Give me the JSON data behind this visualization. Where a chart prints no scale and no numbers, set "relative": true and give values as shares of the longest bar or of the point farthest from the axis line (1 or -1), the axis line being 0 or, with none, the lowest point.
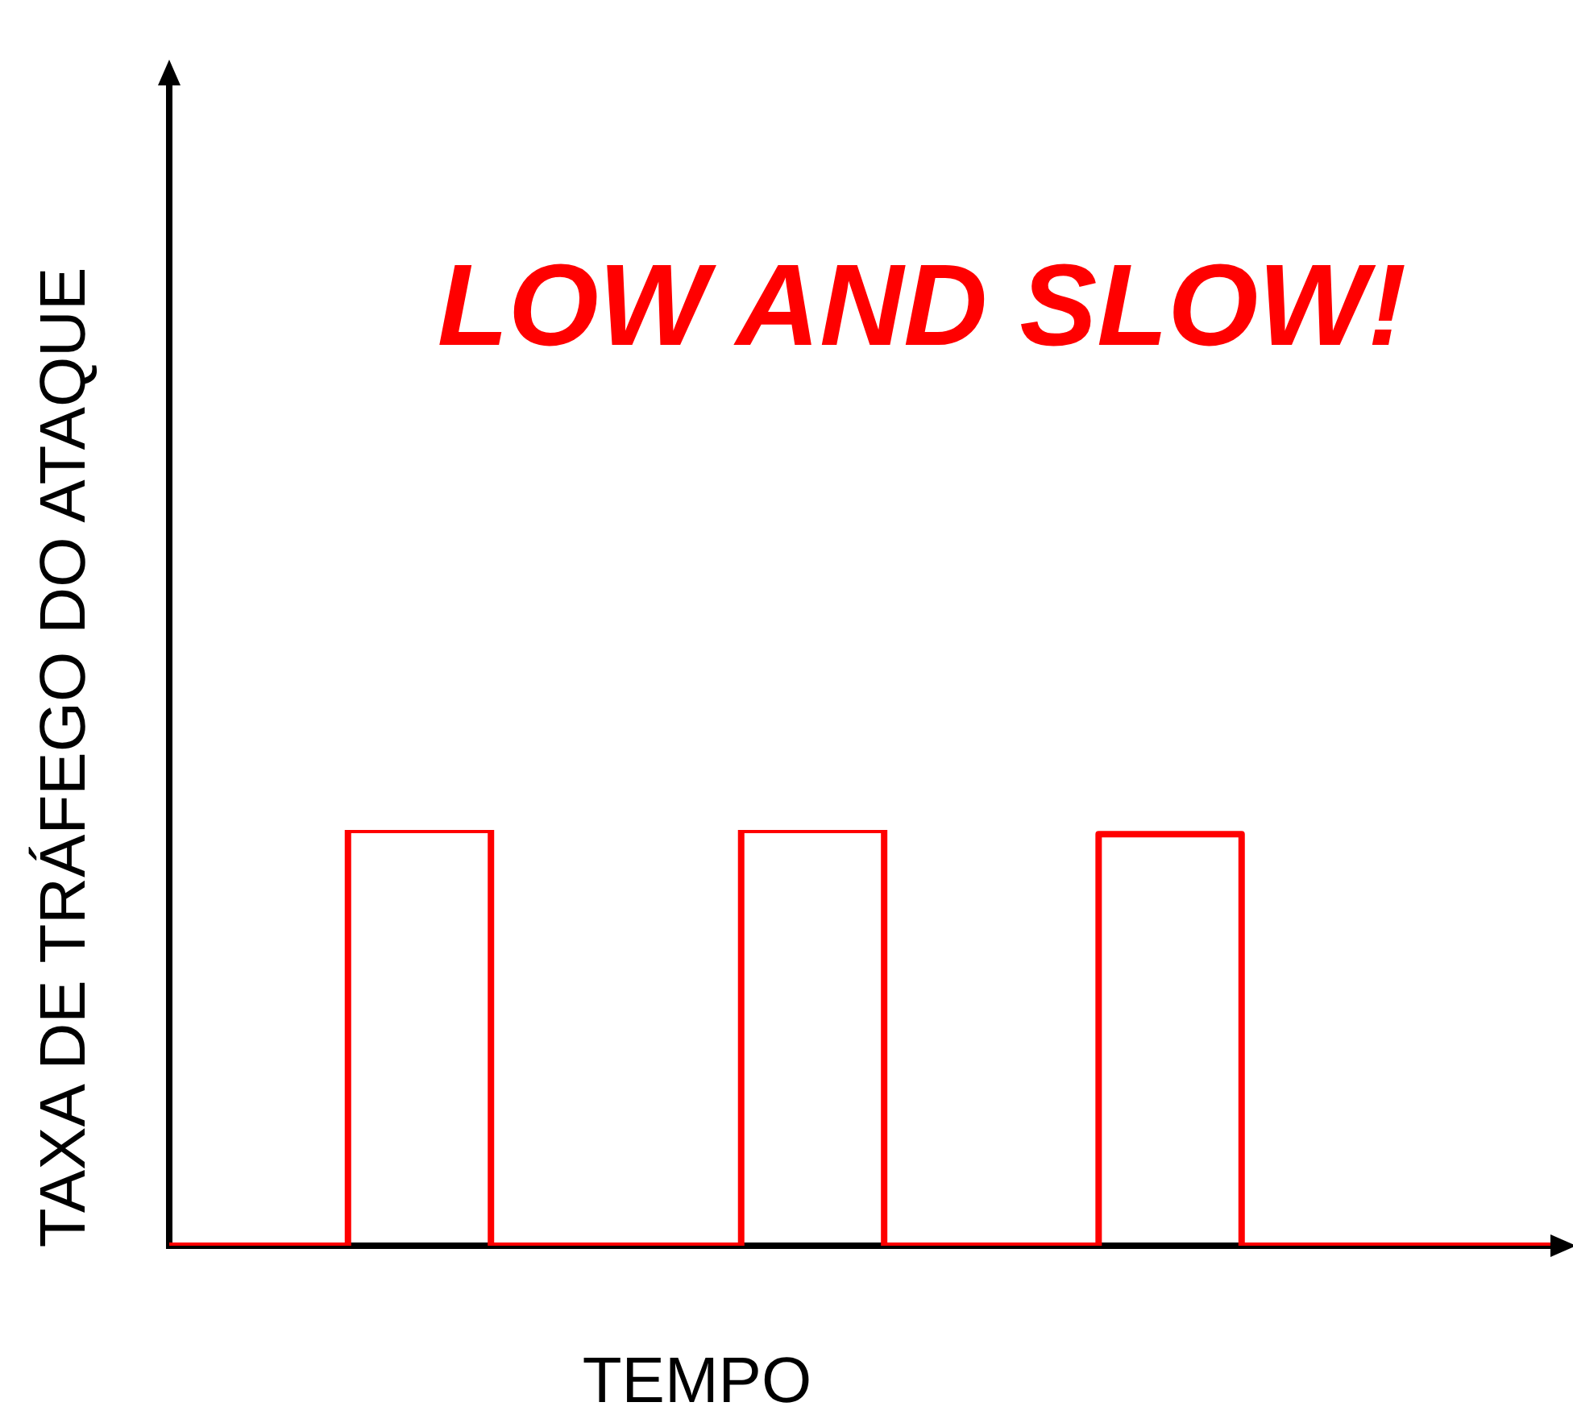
{
  "chart_data": {
    "type": "step",
    "relative": true,
    "xlabel": "TEMPO",
    "ylabel": "TAXA DE TRÁFEGO DO ATAQUE",
    "annotations": [
      "LOW AND SLOW!"
    ],
    "grid": false,
    "legend": false,
    "marker": "none",
    "line_style": "solid",
    "categories": [
      null,
      null,
      null,
      null,
      null,
      null,
      null,
      null,
      null,
      null,
      null,
      null,
      null,
      null,
      null,
      null,
      null,
      null,
      null,
      null,
      null,
      null,
      null,
      null,
      null,
      null,
      null,
      null,
      null,
      null,
      null,
      null,
      null,
      null,
      null,
      null,
      null,
      null,
      null,
      null
    ],
    "series": [
      {
        "color": "#ff0000",
        "values": [
          0,
          0,
          0,
          0,
          0,
          0,
          1,
          1,
          1,
          1,
          0,
          0,
          0,
          0,
          0,
          0,
          0,
          1,
          1,
          1,
          1,
          0,
          0,
          0,
          0,
          0,
          0,
          0.99,
          0.99,
          0.99,
          0.99,
          0,
          0,
          0,
          0,
          0,
          0,
          0,
          0,
          0
        ]
      }
    ]
  }
}
